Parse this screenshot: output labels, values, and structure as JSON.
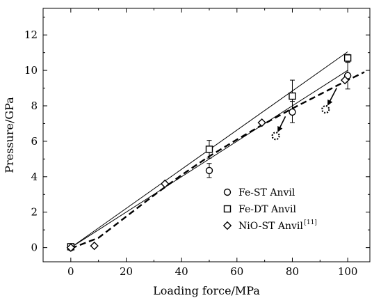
{
  "chart_data": {
    "type": "scatter",
    "xlabel": "Loading force/MPa",
    "ylabel": "Pressure/GPa",
    "xlim": [
      -10,
      108
    ],
    "ylim": [
      -0.8,
      13.5
    ],
    "xticks": [
      "0",
      "20",
      "40",
      "60",
      "80",
      "100"
    ],
    "yticks": [
      "0",
      "2",
      "4",
      "6",
      "8",
      "10",
      "12"
    ],
    "legend_position": "bottom-right",
    "series": [
      {
        "name": "Fe-ST Anvil",
        "marker": "circle",
        "points": [
          {
            "x": 0,
            "y": 0.0,
            "err": 0.1
          },
          {
            "x": 50,
            "y": 4.35,
            "err": 0.4
          },
          {
            "x": 80,
            "y": 7.65,
            "err": 0.6
          },
          {
            "x": 100,
            "y": 9.7,
            "err": 0.75
          }
        ],
        "fit": [
          [
            0,
            0
          ],
          [
            100,
            10.0
          ]
        ],
        "fit_style": "solid"
      },
      {
        "name": "Fe-DT Anvil",
        "marker": "square",
        "points": [
          {
            "x": 0,
            "y": 0.05,
            "err": 0.1
          },
          {
            "x": 50,
            "y": 5.55,
            "err": 0.5
          },
          {
            "x": 80,
            "y": 8.55,
            "err": 0.9
          },
          {
            "x": 100,
            "y": 10.7,
            "err": 0.2
          }
        ],
        "fit": [
          [
            0,
            0
          ],
          [
            100,
            11.05
          ]
        ],
        "fit_style": "solid"
      },
      {
        "name": "NiO-ST Anvil",
        "name_sup": "[11]",
        "marker": "diamond",
        "points": [
          {
            "x": 0,
            "y": 0.0
          },
          {
            "x": 8.5,
            "y": 0.1
          },
          {
            "x": 34,
            "y": 3.6
          },
          {
            "x": 69,
            "y": 7.05
          },
          {
            "x": 99,
            "y": 9.45
          }
        ],
        "fit": [
          [
            0,
            -0.05
          ],
          [
            10,
            0.55
          ],
          [
            20,
            1.75
          ],
          [
            30,
            2.95
          ],
          [
            40,
            4.1
          ],
          [
            50,
            5.15
          ],
          [
            60,
            6.1
          ],
          [
            70,
            7.0
          ],
          [
            80,
            7.85
          ],
          [
            90,
            8.65
          ],
          [
            100,
            9.45
          ],
          [
            106,
            9.9
          ]
        ],
        "fit_style": "dashed"
      }
    ],
    "annotations": [
      {
        "type": "dotted-circle",
        "x": 74,
        "y": 6.3,
        "arrow_from": [
          77.5,
          7.4
        ]
      },
      {
        "type": "dotted-circle",
        "x": 92,
        "y": 7.8,
        "arrow_from": [
          96,
          9.0
        ]
      }
    ]
  }
}
